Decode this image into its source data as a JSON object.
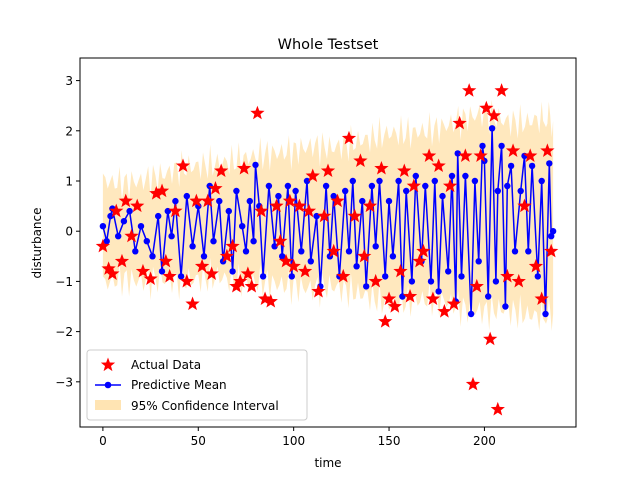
{
  "chart_data": {
    "type": "line",
    "title": "Whole Testset",
    "xlabel": "time",
    "ylabel": "disturbance",
    "xlim": [
      -12,
      248
    ],
    "ylim": [
      -3.9,
      3.45
    ],
    "x_ticks": [
      0,
      50,
      100,
      150,
      200
    ],
    "y_ticks": [
      -3,
      -2,
      -1,
      0,
      1,
      2,
      3
    ],
    "grid": false,
    "legend_position": "lower-left",
    "legend": [
      "Actual Data",
      "Predictive Mean",
      "95% Confidence Interval"
    ],
    "colors": {
      "actual": "#ff0000",
      "mean": "#0000ff",
      "confidence": "#ffe4b3"
    },
    "series": [
      {
        "name": "Predictive Mean",
        "marker": "circle",
        "x": [
          0,
          2,
          4,
          5,
          8,
          11,
          14,
          17,
          20,
          23,
          26,
          29,
          31,
          34,
          36,
          38,
          41,
          44,
          47,
          50,
          53,
          56,
          58,
          61,
          63,
          66,
          68,
          70,
          73,
          75,
          77,
          79,
          80,
          82,
          84,
          87,
          90,
          92,
          94,
          97,
          99,
          101,
          104,
          107,
          109,
          112,
          114,
          117,
          119,
          121,
          124,
          127,
          129,
          131,
          133,
          136,
          138,
          141,
          143,
          145,
          148,
          150,
          152,
          155,
          157,
          159,
          162,
          164,
          167,
          169,
          172,
          174,
          176,
          178,
          181,
          183,
          185,
          186,
          188,
          190,
          193,
          195,
          197,
          199,
          200,
          202,
          204,
          206,
          207,
          209,
          211,
          212,
          214,
          216,
          219,
          221,
          223,
          225,
          228,
          230,
          232,
          234,
          235,
          236
        ],
        "values": [
          0.1,
          -0.2,
          0.3,
          0.45,
          -0.1,
          0.2,
          0.4,
          -0.4,
          0.1,
          -0.2,
          -0.5,
          0.3,
          -0.8,
          0.4,
          -0.1,
          0.6,
          -0.9,
          0.7,
          -0.3,
          0.5,
          -0.5,
          0.9,
          -0.2,
          0.6,
          -0.6,
          0.4,
          -0.8,
          0.8,
          0.1,
          -0.4,
          0.6,
          -0.2,
          1.32,
          0.5,
          -0.9,
          0.9,
          -0.3,
          0.7,
          -0.5,
          0.9,
          -0.9,
          0.8,
          -0.4,
          1.0,
          -0.6,
          0.3,
          -1.1,
          0.9,
          -0.5,
          0.7,
          -0.9,
          0.8,
          -0.4,
          1.0,
          -0.7,
          0.6,
          -1.1,
          0.9,
          -0.3,
          1.0,
          -0.9,
          0.6,
          -0.5,
          1.0,
          -1.3,
          0.8,
          -1.0,
          1.1,
          -0.6,
          0.9,
          -1.0,
          1.0,
          -1.2,
          0.7,
          -0.8,
          1.1,
          -1.4,
          1.55,
          -0.9,
          1.1,
          -1.65,
          1.0,
          -0.6,
          1.7,
          1.4,
          -1.3,
          2.05,
          -1.0,
          0.8,
          1.7,
          -1.5,
          0.9,
          1.3,
          -0.4,
          0.8,
          1.5,
          -0.4,
          1.3,
          -0.9,
          1.0,
          -1.65,
          1.35,
          -0.1,
          0.0
        ]
      },
      {
        "name": "Actual Data",
        "marker": "star",
        "x": [
          0,
          3,
          5,
          7,
          10,
          12,
          15,
          18,
          21,
          25,
          28,
          31,
          33,
          35,
          38,
          42,
          44,
          47,
          49,
          52,
          55,
          57,
          59,
          62,
          65,
          68,
          70,
          72,
          74,
          76,
          78,
          81,
          83,
          85,
          88,
          91,
          93,
          96,
          98,
          100,
          103,
          106,
          108,
          110,
          113,
          116,
          118,
          121,
          123,
          126,
          129,
          132,
          135,
          137,
          140,
          143,
          146,
          148,
          150,
          153,
          156,
          158,
          161,
          163,
          166,
          168,
          171,
          173,
          176,
          179,
          182,
          184,
          187,
          190,
          192,
          194,
          196,
          198,
          201,
          203,
          205,
          207,
          209,
          212,
          215,
          218,
          221,
          224,
          227,
          230,
          233,
          235
        ],
        "values": [
          -0.3,
          -0.75,
          -0.85,
          0.4,
          -0.6,
          0.6,
          -0.1,
          0.5,
          -0.8,
          -0.95,
          0.75,
          0.8,
          -0.6,
          -0.9,
          0.4,
          1.3,
          -1.0,
          -1.45,
          0.6,
          -0.7,
          0.6,
          -0.85,
          0.85,
          1.2,
          -0.5,
          -0.3,
          -1.1,
          -1.0,
          1.25,
          -0.85,
          -1.1,
          2.35,
          0.4,
          -1.35,
          -1.4,
          0.5,
          -0.2,
          -0.6,
          0.6,
          -0.7,
          0.5,
          -0.8,
          0.4,
          1.1,
          -1.2,
          0.3,
          1.2,
          -0.4,
          0.6,
          -0.9,
          1.85,
          0.3,
          1.4,
          -0.5,
          0.5,
          -1.0,
          1.25,
          -1.8,
          -1.35,
          -1.5,
          -0.8,
          1.2,
          -1.3,
          0.9,
          -0.6,
          -0.4,
          1.5,
          -1.35,
          1.3,
          -1.6,
          0.9,
          -1.45,
          2.15,
          1.5,
          2.8,
          -3.05,
          -1.1,
          1.5,
          2.45,
          -2.15,
          2.3,
          -3.55,
          2.8,
          -0.9,
          1.6,
          -1.0,
          0.5,
          1.5,
          -0.7,
          -1.35,
          1.6,
          -0.4
        ]
      },
      {
        "name": "95% Confidence Interval",
        "x": [
          0,
          10,
          20,
          30,
          40,
          50,
          60,
          70,
          80,
          90,
          100,
          110,
          120,
          130,
          140,
          150,
          160,
          170,
          180,
          190,
          200,
          210,
          220,
          230,
          236
        ],
        "lower": [
          -1.05,
          -0.95,
          -1.0,
          -0.95,
          -1.0,
          -0.95,
          -0.9,
          -1.0,
          -1.0,
          -1.05,
          -1.1,
          -1.15,
          -1.1,
          -1.2,
          -1.3,
          -1.45,
          -1.4,
          -1.35,
          -1.4,
          -1.55,
          -1.6,
          -1.55,
          -1.65,
          -1.7,
          -1.65
        ],
        "upper": [
          1.0,
          0.95,
          1.0,
          1.1,
          1.25,
          1.3,
          1.35,
          1.4,
          1.5,
          1.55,
          1.6,
          1.7,
          1.65,
          1.75,
          1.85,
          1.95,
          1.95,
          2.0,
          2.1,
          2.25,
          2.35,
          2.2,
          2.15,
          2.25,
          2.2
        ]
      }
    ]
  }
}
